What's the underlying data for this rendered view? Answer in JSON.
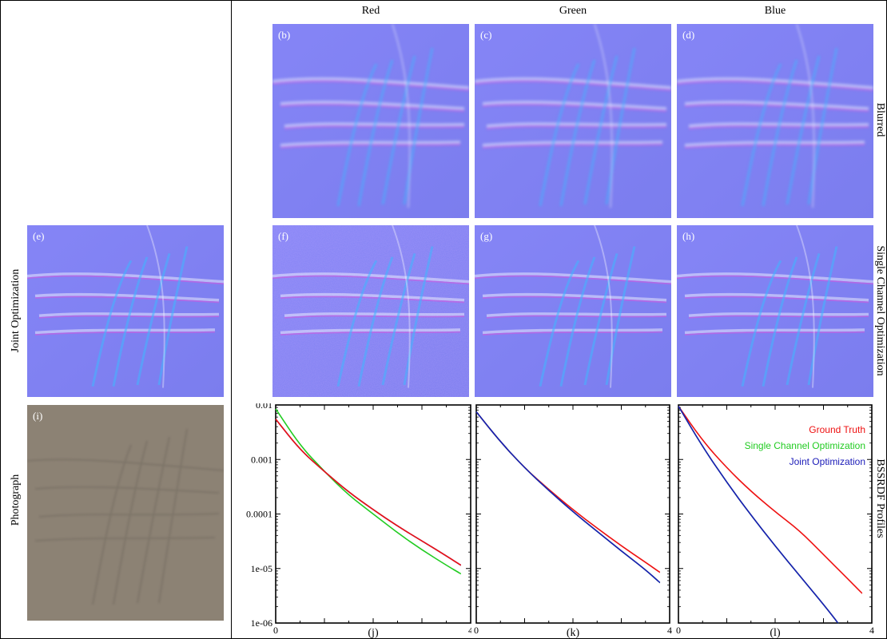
{
  "columns": [
    "Red",
    "Green",
    "Blue"
  ],
  "row_labels": {
    "blurred": "Blurred",
    "single": "Single Channel Optimization",
    "profiles": "BSSRDF Profiles",
    "joint": "Joint Optimization",
    "photo": "Photograph"
  },
  "panels": {
    "b": "(b)",
    "c": "(c)",
    "d": "(d)",
    "e": "(e)",
    "f": "(f)",
    "g": "(g)",
    "h": "(h)",
    "i": "(i)"
  },
  "colors": {
    "normal_map_bg": "#8080f2",
    "photo_bg": "#8c8274",
    "ground_truth": "#ee1111",
    "single_channel": "#22cc22",
    "joint": "#1a1ab8"
  },
  "icon_names": [
    "normal-map-texture",
    "photograph-texture"
  ],
  "chart_data": [
    {
      "type": "line",
      "caption": "(j)",
      "x_ticks": [
        "0",
        "4"
      ],
      "y_ticks": [
        "0.01",
        "0.001",
        "0.0001",
        "1e-05",
        "1e-06"
      ],
      "y_scale": "log",
      "xlim": [
        0,
        4
      ],
      "ylim": [
        1e-06,
        0.01
      ],
      "series": [
        {
          "color": "#22cc22",
          "x": [
            0.0,
            0.5,
            1.0,
            1.5,
            2.0,
            2.5,
            3.0,
            3.5,
            3.8
          ],
          "y": [
            0.0085,
            0.0018,
            0.0006,
            0.00022,
            0.0001,
            4.5e-05,
            2.2e-05,
            1.15e-05,
            8e-06
          ]
        },
        {
          "color": "#1a1ab8",
          "x": [
            0.0,
            0.5,
            1.0,
            1.5,
            2.0,
            2.5,
            3.0,
            3.5,
            3.8
          ],
          "y": [
            0.0055,
            0.0015,
            0.0006,
            0.00025,
            0.00012,
            6e-05,
            3.2e-05,
            1.7e-05,
            1.15e-05
          ]
        },
        {
          "color": "#ee1111",
          "x": [
            0.0,
            0.5,
            1.0,
            1.5,
            2.0,
            2.5,
            3.0,
            3.5,
            3.8
          ],
          "y": [
            0.0055,
            0.0015,
            0.0006,
            0.00025,
            0.00012,
            6e-05,
            3.2e-05,
            1.7e-05,
            1.15e-05
          ]
        }
      ]
    },
    {
      "type": "line",
      "caption": "(k)",
      "x_ticks": [
        "0",
        "4"
      ],
      "y_scale": "log",
      "xlim": [
        0,
        4
      ],
      "ylim": [
        1e-06,
        0.01
      ],
      "series": [
        {
          "color": "#ee1111",
          "x": [
            0.0,
            0.5,
            1.0,
            1.5,
            2.0,
            2.5,
            3.0,
            3.5,
            3.8
          ],
          "y": [
            0.0075,
            0.0021,
            0.0007,
            0.00028,
            0.00012,
            5.5e-05,
            2.6e-05,
            1.3e-05,
            8.5e-06
          ]
        },
        {
          "color": "#22cc22",
          "x": [
            0.0,
            0.5,
            1.0,
            1.5,
            2.0,
            2.5,
            3.0,
            3.5,
            3.8
          ],
          "y": [
            0.0075,
            0.0021,
            0.0007,
            0.00027,
            0.00011,
            4.8e-05,
            2.1e-05,
            9.5e-06,
            5.5e-06
          ]
        },
        {
          "color": "#1a1ab8",
          "x": [
            0.0,
            0.5,
            1.0,
            1.5,
            2.0,
            2.5,
            3.0,
            3.5,
            3.8
          ],
          "y": [
            0.0075,
            0.0021,
            0.0007,
            0.00027,
            0.00011,
            4.8e-05,
            2.1e-05,
            9.5e-06,
            5.5e-06
          ]
        }
      ]
    },
    {
      "type": "line",
      "caption": "(l)",
      "x_ticks": [
        "0",
        "4"
      ],
      "y_scale": "log",
      "xlim": [
        0,
        4
      ],
      "ylim": [
        1e-06,
        0.01
      ],
      "legend": {
        "position": "top-right",
        "entries": [
          {
            "name": "Ground Truth",
            "color": "#ee1111"
          },
          {
            "name": "Single Channel Optimization",
            "color": "#22cc22"
          },
          {
            "name": "Joint Optimization",
            "color": "#1a1ab8"
          }
        ]
      },
      "series": [
        {
          "name": "Ground Truth",
          "color": "#ee1111",
          "x": [
            0.0,
            0.5,
            1.0,
            1.5,
            2.0,
            2.5,
            3.0,
            3.5,
            3.8
          ],
          "y": [
            0.0095,
            0.0022,
            0.0007,
            0.00026,
            0.00011,
            5e-05,
            1.8e-05,
            6.5e-06,
            3.5e-06
          ]
        },
        {
          "name": "Single Channel Optimization",
          "color": "#22cc22",
          "x": [
            0.0,
            0.5,
            1.0,
            1.5,
            2.0,
            2.5,
            3.0,
            3.3
          ],
          "y": [
            0.0095,
            0.0017,
            0.00038,
            9.5e-05,
            2.6e-05,
            7.5e-06,
            2.2e-06,
            1e-06
          ]
        },
        {
          "name": "Joint Optimization",
          "color": "#1a1ab8",
          "x": [
            0.0,
            0.5,
            1.0,
            1.5,
            2.0,
            2.5,
            3.0,
            3.3
          ],
          "y": [
            0.0095,
            0.0017,
            0.00038,
            9.5e-05,
            2.6e-05,
            7.5e-06,
            2.2e-06,
            1e-06
          ]
        }
      ]
    }
  ]
}
